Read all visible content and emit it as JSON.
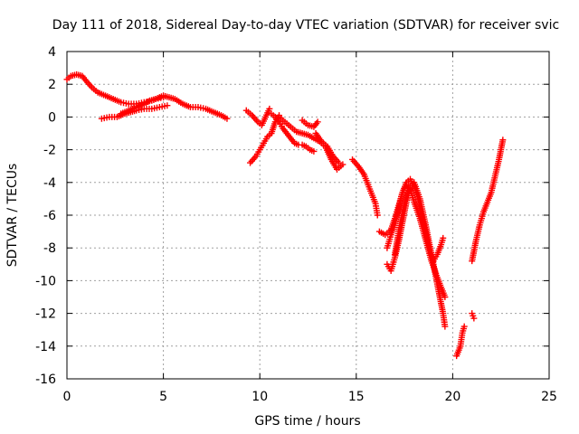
{
  "chart_data": {
    "type": "scatter",
    "title": "Day 111 of 2018, Sidereal Day-to-day VTEC variation (SDTVAR) for receiver svic",
    "xlabel": "GPS time / hours",
    "ylabel": "SDTVAR / TECUs",
    "xlim": [
      0,
      25
    ],
    "ylim": [
      -16,
      4
    ],
    "xticks": [
      "0",
      "5",
      "10",
      "15",
      "20",
      "25"
    ],
    "yticks": [
      "4",
      "2",
      "0",
      "-2",
      "-4",
      "-6",
      "-8",
      "-10",
      "-12",
      "-14",
      "-16"
    ],
    "grid": true,
    "marker": "plus",
    "color": "#ff0000",
    "series": [
      {
        "segments": [
          [
            [
              0.0,
              2.3
            ],
            [
              0.2,
              2.5
            ],
            [
              0.5,
              2.6
            ],
            [
              0.8,
              2.5
            ],
            [
              1.0,
              2.2
            ],
            [
              1.3,
              1.8
            ],
            [
              1.6,
              1.5
            ],
            [
              2.0,
              1.3
            ],
            [
              2.4,
              1.1
            ],
            [
              2.8,
              0.9
            ],
            [
              3.2,
              0.8
            ],
            [
              3.6,
              0.8
            ],
            [
              4.0,
              0.9
            ],
            [
              4.4,
              1.0
            ],
            [
              4.8,
              1.2
            ],
            [
              5.0,
              1.3
            ],
            [
              5.3,
              1.2
            ],
            [
              5.6,
              1.1
            ],
            [
              6.0,
              0.8
            ],
            [
              6.4,
              0.6
            ],
            [
              6.8,
              0.6
            ],
            [
              7.2,
              0.5
            ],
            [
              7.6,
              0.3
            ],
            [
              8.0,
              0.1
            ],
            [
              8.3,
              -0.1
            ]
          ],
          [
            [
              1.8,
              -0.1
            ],
            [
              2.2,
              0.0
            ],
            [
              2.6,
              0.0
            ],
            [
              3.0,
              0.2
            ],
            [
              3.3,
              0.3
            ],
            [
              3.6,
              0.4
            ],
            [
              4.0,
              0.5
            ],
            [
              4.4,
              0.5
            ],
            [
              4.8,
              0.6
            ],
            [
              5.2,
              0.7
            ]
          ],
          [
            [
              2.8,
              0.2
            ],
            [
              3.2,
              0.4
            ],
            [
              3.6,
              0.6
            ],
            [
              4.0,
              0.8
            ],
            [
              4.3,
              1.0
            ],
            [
              4.6,
              1.1
            ],
            [
              5.0,
              1.2
            ]
          ],
          [
            [
              9.3,
              0.4
            ],
            [
              9.6,
              0.1
            ],
            [
              9.9,
              -0.3
            ],
            [
              10.1,
              -0.5
            ],
            [
              10.3,
              0.0
            ],
            [
              10.5,
              0.5
            ]
          ],
          [
            [
              9.5,
              -2.8
            ],
            [
              9.8,
              -2.4
            ],
            [
              10.0,
              -2.0
            ],
            [
              10.2,
              -1.6
            ],
            [
              10.4,
              -1.2
            ],
            [
              10.6,
              -1.0
            ],
            [
              10.8,
              -0.3
            ],
            [
              11.0,
              0.1
            ]
          ],
          [
            [
              10.6,
              0.2
            ],
            [
              10.8,
              0.0
            ],
            [
              11.0,
              -0.3
            ],
            [
              11.2,
              -0.7
            ],
            [
              11.4,
              -1.0
            ],
            [
              11.6,
              -1.3
            ],
            [
              11.8,
              -1.6
            ],
            [
              12.0,
              -1.7
            ],
            [
              12.2,
              -1.7
            ],
            [
              12.4,
              -1.8
            ],
            [
              12.6,
              -2.0
            ],
            [
              12.8,
              -2.1
            ]
          ],
          [
            [
              11.0,
              0.0
            ],
            [
              11.3,
              -0.3
            ],
            [
              11.6,
              -0.6
            ],
            [
              11.9,
              -0.9
            ],
            [
              12.2,
              -1.0
            ],
            [
              12.5,
              -1.1
            ],
            [
              12.8,
              -1.3
            ],
            [
              13.1,
              -1.5
            ],
            [
              13.4,
              -1.8
            ],
            [
              13.7,
              -2.6
            ],
            [
              14.0,
              -3.2
            ],
            [
              14.3,
              -2.9
            ]
          ],
          [
            [
              12.2,
              -0.2
            ],
            [
              12.5,
              -0.5
            ],
            [
              12.8,
              -0.6
            ],
            [
              13.0,
              -0.3
            ]
          ],
          [
            [
              12.9,
              -1.0
            ],
            [
              13.2,
              -1.5
            ],
            [
              13.5,
              -1.8
            ],
            [
              13.8,
              -2.4
            ],
            [
              14.1,
              -2.8
            ]
          ],
          [
            [
              14.8,
              -2.6
            ],
            [
              15.1,
              -3.0
            ],
            [
              15.4,
              -3.5
            ],
            [
              15.7,
              -4.4
            ],
            [
              16.0,
              -5.3
            ],
            [
              16.1,
              -6.0
            ]
          ],
          [
            [
              16.2,
              -7.0
            ],
            [
              16.5,
              -7.2
            ],
            [
              16.8,
              -6.9
            ],
            [
              17.0,
              -6.2
            ],
            [
              17.2,
              -5.4
            ],
            [
              17.4,
              -4.6
            ],
            [
              17.6,
              -4.0
            ],
            [
              17.8,
              -3.8
            ],
            [
              18.0,
              -4.2
            ],
            [
              18.2,
              -5.0
            ],
            [
              18.4,
              -6.0
            ],
            [
              18.6,
              -7.0
            ],
            [
              18.8,
              -8.2
            ],
            [
              19.0,
              -8.8
            ],
            [
              19.2,
              -8.4
            ],
            [
              19.4,
              -7.8
            ],
            [
              19.5,
              -7.4
            ]
          ],
          [
            [
              16.6,
              -8.0
            ],
            [
              16.8,
              -7.2
            ],
            [
              17.0,
              -6.5
            ],
            [
              17.2,
              -5.6
            ],
            [
              17.4,
              -4.6
            ],
            [
              17.6,
              -4.2
            ],
            [
              17.8,
              -4.4
            ],
            [
              18.0,
              -5.2
            ],
            [
              18.3,
              -6.2
            ],
            [
              18.6,
              -7.5
            ],
            [
              18.9,
              -8.8
            ],
            [
              19.2,
              -9.8
            ],
            [
              19.4,
              -10.4
            ],
            [
              19.6,
              -11.0
            ]
          ],
          [
            [
              16.6,
              -9.0
            ],
            [
              16.8,
              -9.4
            ],
            [
              17.0,
              -8.6
            ],
            [
              17.2,
              -7.6
            ],
            [
              17.4,
              -6.4
            ],
            [
              17.6,
              -5.2
            ],
            [
              17.8,
              -4.2
            ],
            [
              18.0,
              -4.0
            ],
            [
              18.3,
              -5.0
            ],
            [
              18.6,
              -6.6
            ],
            [
              18.9,
              -8.4
            ],
            [
              19.1,
              -9.6
            ],
            [
              19.3,
              -10.8
            ],
            [
              19.5,
              -12.0
            ],
            [
              19.6,
              -12.8
            ]
          ],
          [
            [
              17.0,
              -8.4
            ],
            [
              17.2,
              -7.0
            ],
            [
              17.4,
              -5.8
            ],
            [
              17.6,
              -4.8
            ],
            [
              17.8,
              -4.4
            ]
          ],
          [
            [
              20.2,
              -14.6
            ],
            [
              20.4,
              -14.0
            ],
            [
              20.5,
              -13.2
            ],
            [
              20.6,
              -12.8
            ]
          ],
          [
            [
              21.0,
              -12.0
            ],
            [
              21.1,
              -12.3
            ]
          ],
          [
            [
              21.0,
              -8.8
            ],
            [
              21.2,
              -7.6
            ],
            [
              21.4,
              -6.6
            ],
            [
              21.6,
              -5.8
            ],
            [
              21.8,
              -5.2
            ],
            [
              22.0,
              -4.6
            ],
            [
              22.2,
              -3.6
            ],
            [
              22.4,
              -2.6
            ],
            [
              22.6,
              -1.4
            ]
          ]
        ]
      }
    ]
  }
}
